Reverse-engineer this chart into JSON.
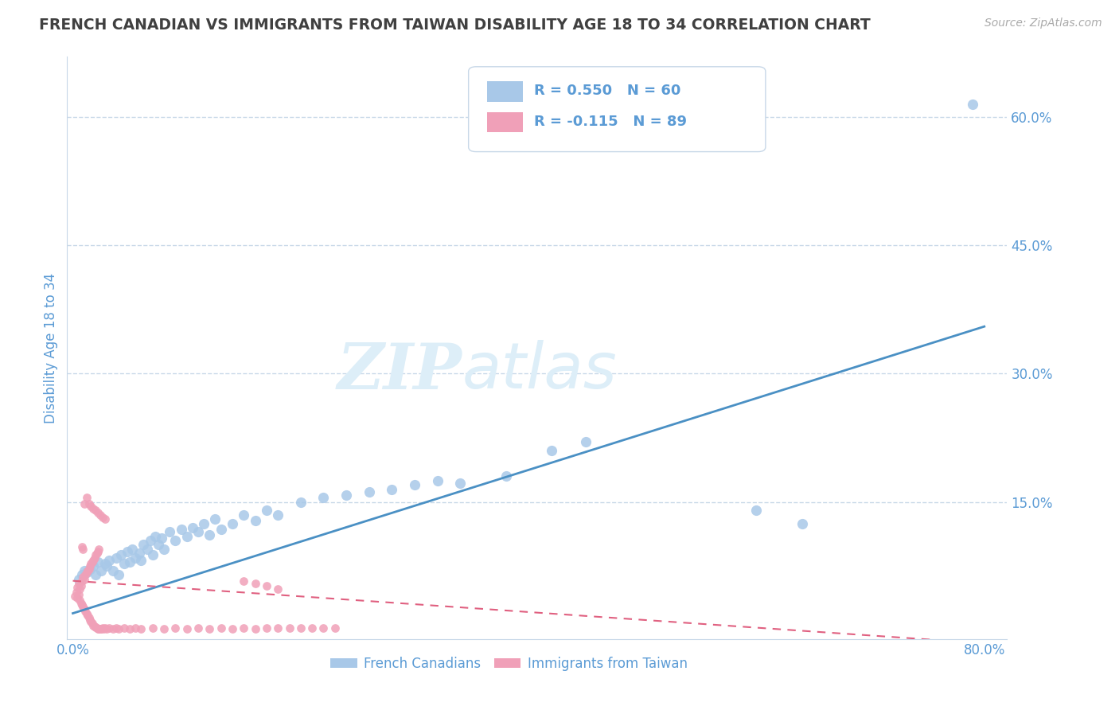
{
  "title": "FRENCH CANADIAN VS IMMIGRANTS FROM TAIWAN DISABILITY AGE 18 TO 34 CORRELATION CHART",
  "source_text": "Source: ZipAtlas.com",
  "ylabel": "Disability Age 18 to 34",
  "xlim": [
    -0.005,
    0.82
  ],
  "ylim": [
    -0.01,
    0.67
  ],
  "yticks": [
    0.0,
    0.15,
    0.3,
    0.45,
    0.6
  ],
  "xticks": [
    0.0,
    0.2,
    0.4,
    0.6,
    0.8
  ],
  "ytick_labels": [
    "",
    "15.0%",
    "30.0%",
    "45.0%",
    "60.0%"
  ],
  "xtick_labels": [
    "0.0%",
    "",
    "",
    "",
    "80.0%"
  ],
  "legend1_label": "French Canadians",
  "legend2_label": "Immigrants from Taiwan",
  "R1": 0.55,
  "N1": 60,
  "R2": -0.115,
  "N2": 89,
  "blue_color": "#4a90c4",
  "blue_light": "#a8c8e8",
  "pink_color": "#f0a0b8",
  "pink_dark": "#e06080",
  "title_color": "#404040",
  "axis_color": "#5b9bd5",
  "watermark_zip": "ZIP",
  "watermark_atlas": "atlas",
  "watermark_color": "#ddeef8",
  "background_color": "#ffffff",
  "grid_color": "#c8d8e8",
  "blue_scatter_x": [
    0.005,
    0.008,
    0.01,
    0.012,
    0.015,
    0.018,
    0.02,
    0.022,
    0.025,
    0.028,
    0.03,
    0.032,
    0.035,
    0.038,
    0.04,
    0.042,
    0.045,
    0.048,
    0.05,
    0.052,
    0.055,
    0.058,
    0.06,
    0.062,
    0.065,
    0.068,
    0.07,
    0.072,
    0.075,
    0.078,
    0.08,
    0.085,
    0.09,
    0.095,
    0.1,
    0.105,
    0.11,
    0.115,
    0.12,
    0.125,
    0.13,
    0.14,
    0.15,
    0.16,
    0.17,
    0.18,
    0.2,
    0.22,
    0.24,
    0.26,
    0.28,
    0.3,
    0.32,
    0.34,
    0.38,
    0.42,
    0.45,
    0.6,
    0.64,
    0.79
  ],
  "blue_scatter_y": [
    0.06,
    0.065,
    0.07,
    0.068,
    0.072,
    0.075,
    0.065,
    0.08,
    0.07,
    0.078,
    0.075,
    0.082,
    0.07,
    0.085,
    0.065,
    0.088,
    0.078,
    0.092,
    0.08,
    0.095,
    0.085,
    0.09,
    0.082,
    0.1,
    0.095,
    0.105,
    0.088,
    0.11,
    0.1,
    0.108,
    0.095,
    0.115,
    0.105,
    0.118,
    0.11,
    0.12,
    0.115,
    0.125,
    0.112,
    0.13,
    0.118,
    0.125,
    0.135,
    0.128,
    0.14,
    0.135,
    0.15,
    0.155,
    0.158,
    0.162,
    0.165,
    0.17,
    0.175,
    0.172,
    0.18,
    0.21,
    0.22,
    0.14,
    0.125,
    0.615
  ],
  "pink_scatter_x": [
    0.002,
    0.003,
    0.004,
    0.004,
    0.005,
    0.005,
    0.006,
    0.006,
    0.007,
    0.007,
    0.008,
    0.008,
    0.009,
    0.009,
    0.01,
    0.01,
    0.011,
    0.011,
    0.012,
    0.012,
    0.013,
    0.013,
    0.014,
    0.014,
    0.015,
    0.015,
    0.016,
    0.016,
    0.017,
    0.017,
    0.018,
    0.018,
    0.019,
    0.019,
    0.02,
    0.02,
    0.021,
    0.021,
    0.022,
    0.022,
    0.023,
    0.023,
    0.024,
    0.025,
    0.026,
    0.027,
    0.028,
    0.03,
    0.032,
    0.035,
    0.038,
    0.04,
    0.045,
    0.05,
    0.055,
    0.06,
    0.07,
    0.08,
    0.09,
    0.1,
    0.11,
    0.12,
    0.13,
    0.14,
    0.15,
    0.16,
    0.01,
    0.012,
    0.014,
    0.016,
    0.018,
    0.02,
    0.022,
    0.024,
    0.026,
    0.028,
    0.17,
    0.18,
    0.19,
    0.2,
    0.21,
    0.22,
    0.23,
    0.15,
    0.16,
    0.17,
    0.18,
    0.008,
    0.009
  ],
  "pink_scatter_y": [
    0.04,
    0.045,
    0.05,
    0.038,
    0.042,
    0.055,
    0.035,
    0.048,
    0.032,
    0.052,
    0.03,
    0.058,
    0.028,
    0.062,
    0.025,
    0.06,
    0.022,
    0.065,
    0.02,
    0.068,
    0.018,
    0.07,
    0.015,
    0.072,
    0.012,
    0.075,
    0.01,
    0.078,
    0.008,
    0.08,
    0.006,
    0.082,
    0.005,
    0.085,
    0.004,
    0.088,
    0.003,
    0.09,
    0.002,
    0.092,
    0.002,
    0.095,
    0.002,
    0.002,
    0.003,
    0.002,
    0.003,
    0.002,
    0.003,
    0.002,
    0.003,
    0.002,
    0.003,
    0.002,
    0.003,
    0.002,
    0.003,
    0.002,
    0.003,
    0.002,
    0.003,
    0.002,
    0.003,
    0.002,
    0.003,
    0.002,
    0.148,
    0.155,
    0.148,
    0.145,
    0.142,
    0.14,
    0.138,
    0.135,
    0.132,
    0.13,
    0.003,
    0.003,
    0.003,
    0.003,
    0.003,
    0.003,
    0.003,
    0.058,
    0.055,
    0.052,
    0.048,
    0.098,
    0.095
  ],
  "blue_trendline_x": [
    0.0,
    0.8
  ],
  "blue_trendline_y": [
    0.02,
    0.355
  ],
  "pink_trendline_x": [
    0.0,
    0.8
  ],
  "pink_trendline_y": [
    0.058,
    -0.015
  ]
}
